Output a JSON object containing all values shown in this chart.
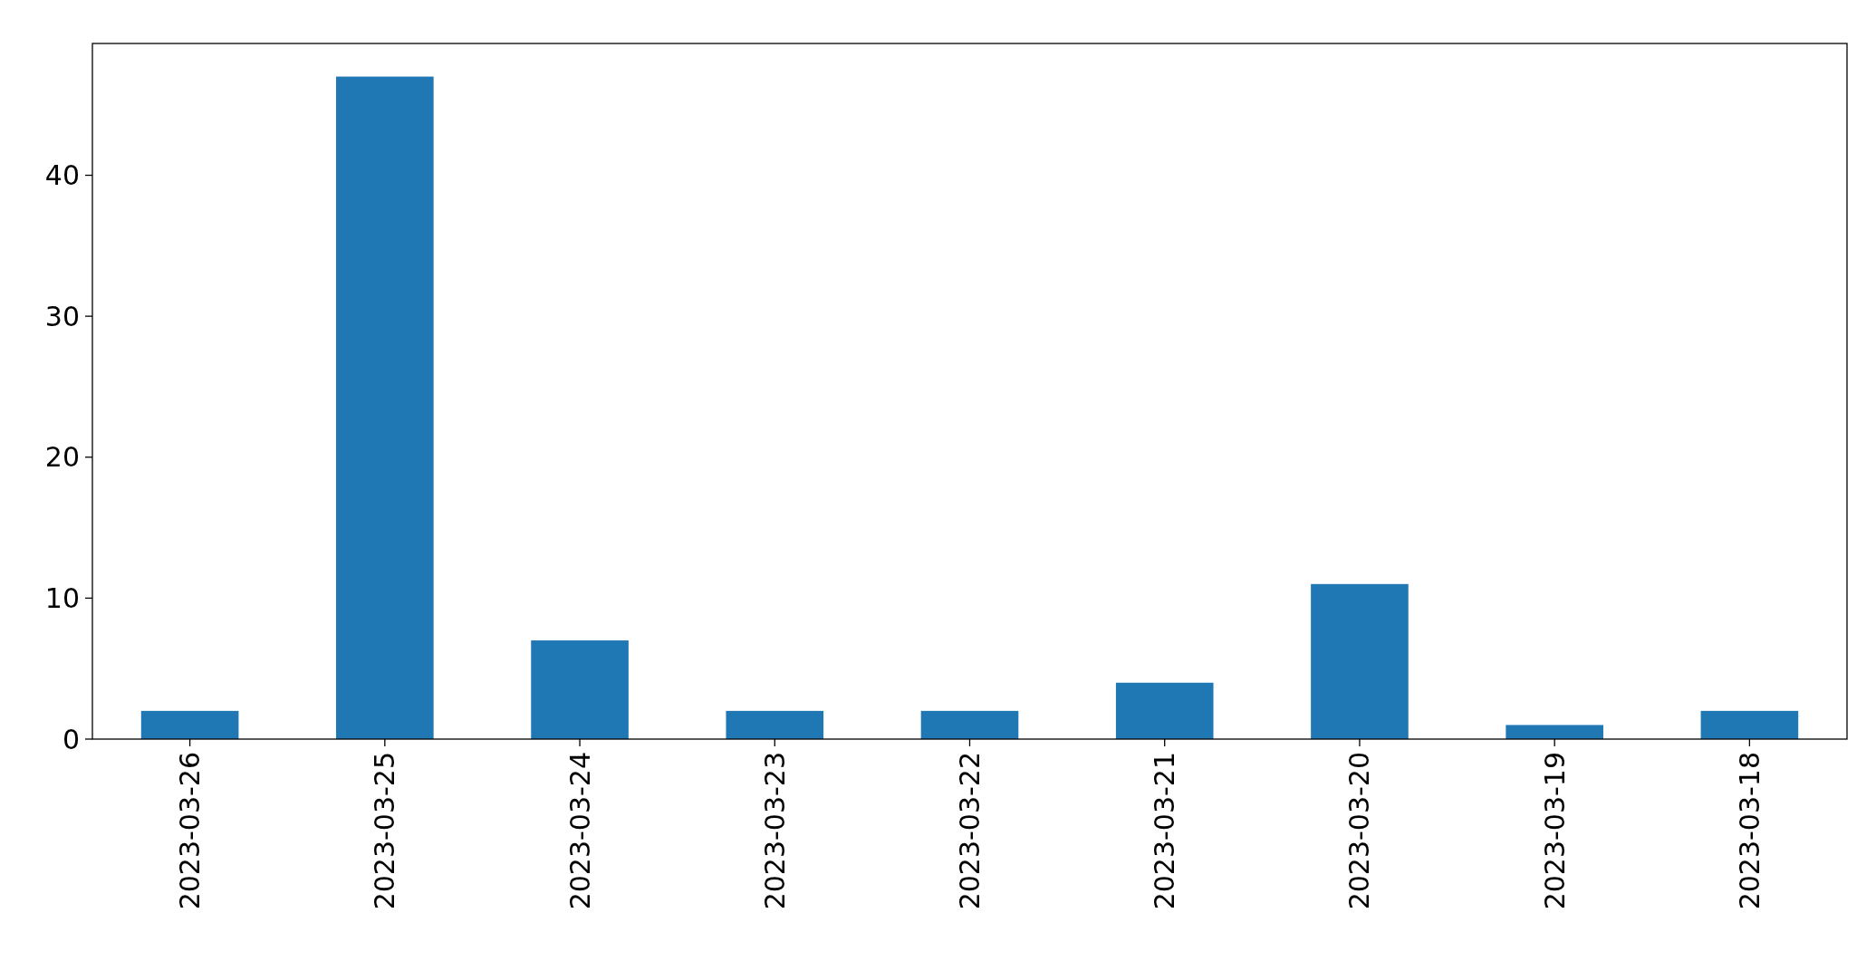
{
  "chart_data": {
    "type": "bar",
    "categories": [
      "2023-03-26",
      "2023-03-25",
      "2023-03-24",
      "2023-03-23",
      "2023-03-22",
      "2023-03-21",
      "2023-03-20",
      "2023-03-19",
      "2023-03-18"
    ],
    "values": [
      2,
      47,
      7,
      2,
      2,
      4,
      11,
      1,
      2
    ],
    "color": "#1f77b4",
    "ylim": [
      0,
      49.35
    ],
    "yticks": [
      0,
      10,
      20,
      30,
      40
    ],
    "grid": false
  }
}
